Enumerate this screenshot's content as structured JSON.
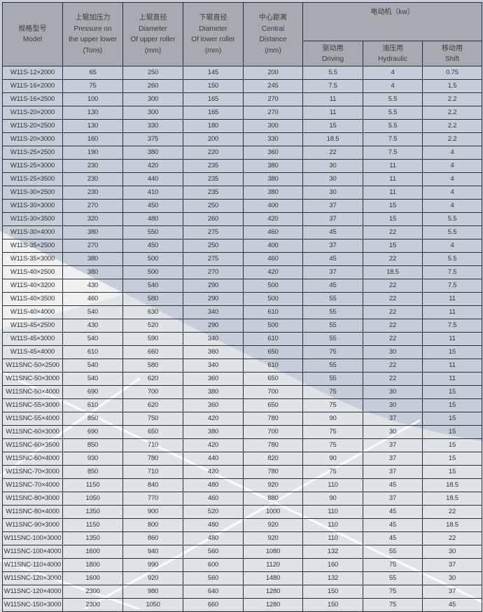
{
  "header": {
    "model": [
      "规格型号",
      "Model"
    ],
    "pressure": [
      "上辊加压力",
      "Pressure on",
      "the upper lower",
      "(Tons)"
    ],
    "upper": [
      "上辊直径",
      "Diameter",
      "Of upper roller",
      "(mm)"
    ],
    "lower": [
      "下辊直径",
      "Diameter",
      "Of lower roller",
      "(mm)"
    ],
    "center": [
      "中心距离",
      "Central",
      "Distance",
      "(mm)"
    ],
    "motor": "电动机（kw）",
    "driving": [
      "驱动用",
      "Driving"
    ],
    "hydraulic": [
      "油压用",
      "Hydraulic"
    ],
    "shift": [
      "移动用",
      "Shift"
    ]
  },
  "colors": {
    "header": "#a0a5ac",
    "row": "#c5ced8",
    "border": "#2a2d31"
  },
  "rows": [
    [
      "W11S-12×2000",
      "65",
      "250",
      "145",
      "200",
      "5.5",
      "4",
      "0.75"
    ],
    [
      "W11S-16×2000",
      "75",
      "260",
      "150",
      "245",
      "7.5",
      "4",
      "1.5"
    ],
    [
      "W11S-16×2500",
      "100",
      "300",
      "165",
      "270",
      "11",
      "5.5",
      "2.2"
    ],
    [
      "W11S-20×2000",
      "130",
      "300",
      "165",
      "270",
      "11",
      "5.5",
      "2.2"
    ],
    [
      "W11S-20×2500",
      "130",
      "330",
      "180",
      "300",
      "15",
      "5.5",
      "2.2"
    ],
    [
      "W11S-20×3000",
      "160",
      "375",
      "200",
      "330",
      "18.5",
      "7.5",
      "2.2"
    ],
    [
      "W11S-25×2500",
      "190",
      "380",
      "220",
      "360",
      "22",
      "7.5",
      "4"
    ],
    [
      "W11S-25×3000",
      "230",
      "420",
      "235",
      "380",
      "30",
      "11",
      "4"
    ],
    [
      "W11S-25×3500",
      "230",
      "440",
      "235",
      "380",
      "30",
      "11",
      "4"
    ],
    [
      "W11S-30×2500",
      "230",
      "410",
      "235",
      "380",
      "30",
      "11",
      "4"
    ],
    [
      "W11S-30×3000",
      "270",
      "450",
      "250",
      "400",
      "37",
      "15",
      "4"
    ],
    [
      "W11S-30×3500",
      "320",
      "480",
      "260",
      "420",
      "37",
      "15",
      "5.5"
    ],
    [
      "W11S-30×4000",
      "380",
      "550",
      "275",
      "460",
      "45",
      "22",
      "5.5"
    ],
    [
      "W11S-35×2500",
      "270",
      "450",
      "250",
      "400",
      "37",
      "15",
      "4"
    ],
    [
      "W11S-35×3000",
      "380",
      "500",
      "275",
      "460",
      "45",
      "22",
      "5.5"
    ],
    [
      "W11S-40×2500",
      "380",
      "500",
      "270",
      "420",
      "37",
      "18.5",
      "7.5"
    ],
    [
      "W11S-40×3200",
      "430",
      "540",
      "290",
      "500",
      "45",
      "22",
      "7.5"
    ],
    [
      "W11S-40×3500",
      "460",
      "580",
      "290",
      "500",
      "55",
      "22",
      "11"
    ],
    [
      "W11S-40×4000",
      "540",
      "630",
      "340",
      "610",
      "55",
      "22",
      "11"
    ],
    [
      "W11S-45×2500",
      "430",
      "520",
      "290",
      "500",
      "55",
      "22",
      "7.5"
    ],
    [
      "W11S-45×3000",
      "540",
      "590",
      "340",
      "610",
      "55",
      "22",
      "11"
    ],
    [
      "W11S-45×4000",
      "610",
      "660",
      "360",
      "650",
      "75",
      "30",
      "15"
    ],
    [
      "W11SNC-50×2500",
      "540",
      "580",
      "340",
      "610",
      "55",
      "22",
      "11"
    ],
    [
      "W11SNC-50×3000",
      "540",
      "620",
      "360",
      "650",
      "55",
      "22",
      "11"
    ],
    [
      "W11SNC-50×4000",
      "690",
      "700",
      "380",
      "700",
      "75",
      "30",
      "15"
    ],
    [
      "W11SNC-55×3000",
      "610",
      "620",
      "360",
      "650",
      "75",
      "30",
      "15"
    ],
    [
      "W11SNC-55×4000",
      "850",
      "750",
      "420",
      "780",
      "90",
      "37",
      "15"
    ],
    [
      "W11SNC-60×3000",
      "690",
      "650",
      "380",
      "700",
      "75",
      "30",
      "15"
    ],
    [
      "W11SNC-60×3500",
      "850",
      "710",
      "420",
      "780",
      "75",
      "37",
      "15"
    ],
    [
      "W11SNC-60×4000",
      "930",
      "780",
      "440",
      "820",
      "90",
      "37",
      "15"
    ],
    [
      "W11SNC-70×3000",
      "850",
      "710",
      "420",
      "780",
      "75",
      "37",
      "15"
    ],
    [
      "W11SNC-70×4000",
      "1150",
      "840",
      "480",
      "920",
      "110",
      "45",
      "18.5"
    ],
    [
      "W11SNC-80×3000",
      "1050",
      "770",
      "460",
      "880",
      "90",
      "37",
      "18.5"
    ],
    [
      "W11SNC-80×4000",
      "1350",
      "900",
      "520",
      "1000",
      "110",
      "45",
      "22"
    ],
    [
      "W11SNC-90×3000",
      "1150",
      "800",
      "480",
      "920",
      "110",
      "45",
      "18.5"
    ],
    [
      "W11SNC-100×3000",
      "1350",
      "860",
      "480",
      "920",
      "110",
      "45",
      "22"
    ],
    [
      "W11SNC-100×4000",
      "1600",
      "940",
      "560",
      "1080",
      "132",
      "55",
      "30"
    ],
    [
      "W11SNC-110×4000",
      "1800",
      "990",
      "600",
      "1120",
      "160",
      "75",
      "37"
    ],
    [
      "W11SNC-120×3000",
      "1600",
      "920",
      "560",
      "1480",
      "132",
      "55",
      "30"
    ],
    [
      "W11SNC-120×4000",
      "2300",
      "980",
      "640",
      "1280",
      "150",
      "75",
      "37"
    ],
    [
      "W11SNC-150×3000",
      "2300",
      "1050",
      "660",
      "1280",
      "150",
      "75",
      "45"
    ]
  ]
}
